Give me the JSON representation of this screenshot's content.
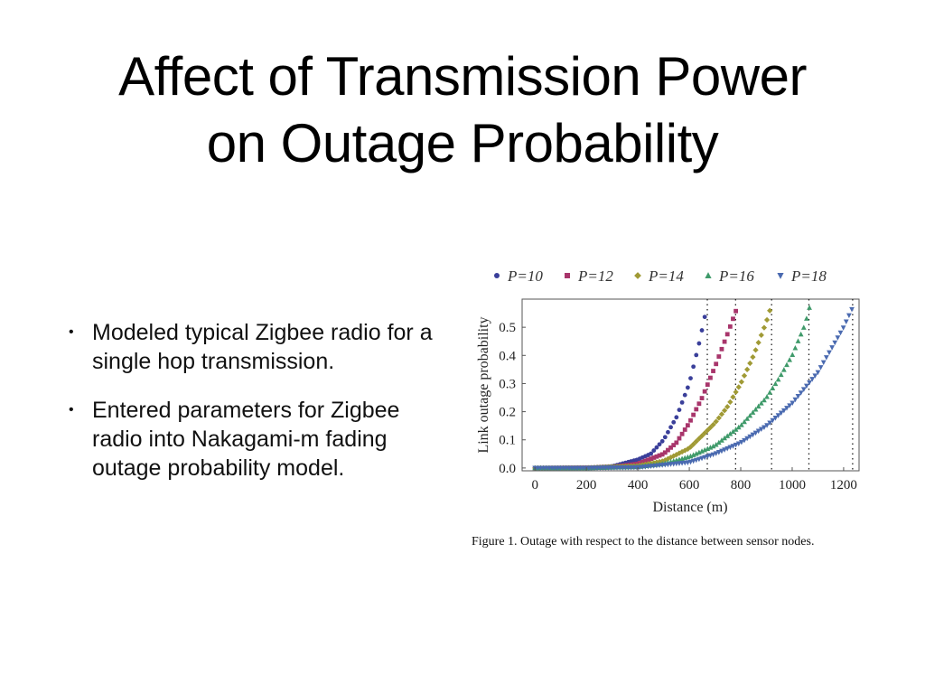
{
  "slide": {
    "title_line1": "Affect of Transmission Power",
    "title_line2": "on Outage Probability",
    "bullets": [
      "Modeled typical Zigbee radio for a single hop transmission.",
      "Entered parameters for Zigbee radio into Nakagami-m fading outage probability model."
    ],
    "caption": "Figure 1.  Outage with respect to the distance between sensor nodes."
  },
  "chart_data": {
    "type": "scatter",
    "title": "",
    "xlabel": "Distance (m)",
    "ylabel": "Link outage probability",
    "xlim": [
      -50,
      1260
    ],
    "ylim": [
      -0.01,
      0.6
    ],
    "xticks": [
      "0",
      "200",
      "400",
      "600",
      "800",
      "1000",
      "1200"
    ],
    "yticks": [
      "0.0",
      "0.1",
      "0.2",
      "0.3",
      "0.4",
      "0.5"
    ],
    "legend_position": "top",
    "series": [
      {
        "name": "P=10",
        "label": "P=10",
        "color": "#3a3f9a",
        "marker": "circle",
        "x_end": 670,
        "cutoff": 670,
        "points": [
          [
            0,
            0
          ],
          [
            100,
            0
          ],
          [
            200,
            0.001
          ],
          [
            300,
            0.006
          ],
          [
            400,
            0.03
          ],
          [
            450,
            0.05
          ],
          [
            500,
            0.1
          ],
          [
            550,
            0.18
          ],
          [
            600,
            0.3
          ],
          [
            640,
            0.45
          ],
          [
            670,
            0.58
          ]
        ]
      },
      {
        "name": "P=12",
        "label": "P=12",
        "color": "#a8356b",
        "marker": "square",
        "x_end": 790,
        "cutoff": 780,
        "points": [
          [
            0,
            0
          ],
          [
            200,
            0.001
          ],
          [
            300,
            0.003
          ],
          [
            400,
            0.015
          ],
          [
            500,
            0.05
          ],
          [
            550,
            0.09
          ],
          [
            600,
            0.16
          ],
          [
            650,
            0.25
          ],
          [
            700,
            0.36
          ],
          [
            750,
            0.48
          ],
          [
            790,
            0.58
          ]
        ]
      },
      {
        "name": "P=14",
        "label": "P=14",
        "color": "#a09a35",
        "marker": "diamond",
        "x_end": 920,
        "cutoff": 920,
        "points": [
          [
            0,
            0
          ],
          [
            200,
            0.0005
          ],
          [
            400,
            0.008
          ],
          [
            500,
            0.025
          ],
          [
            600,
            0.07
          ],
          [
            700,
            0.16
          ],
          [
            750,
            0.22
          ],
          [
            800,
            0.3
          ],
          [
            850,
            0.4
          ],
          [
            900,
            0.52
          ],
          [
            920,
            0.58
          ]
        ]
      },
      {
        "name": "P=16",
        "label": "P=16",
        "color": "#3f9a6a",
        "marker": "triangle",
        "x_end": 1070,
        "cutoff": 1065,
        "points": [
          [
            0,
            0
          ],
          [
            200,
            0
          ],
          [
            400,
            0.004
          ],
          [
            500,
            0.015
          ],
          [
            600,
            0.04
          ],
          [
            700,
            0.08
          ],
          [
            800,
            0.15
          ],
          [
            900,
            0.25
          ],
          [
            950,
            0.32
          ],
          [
            1000,
            0.4
          ],
          [
            1050,
            0.51
          ],
          [
            1070,
            0.58
          ]
        ]
      },
      {
        "name": "P=18",
        "label": "P=18",
        "color": "#4a6ab0",
        "marker": "tri-down",
        "x_end": 1240,
        "cutoff": 1235,
        "points": [
          [
            0,
            0
          ],
          [
            200,
            0
          ],
          [
            400,
            0.002
          ],
          [
            600,
            0.02
          ],
          [
            700,
            0.05
          ],
          [
            800,
            0.09
          ],
          [
            900,
            0.15
          ],
          [
            1000,
            0.23
          ],
          [
            1100,
            0.34
          ],
          [
            1200,
            0.5
          ],
          [
            1240,
            0.58
          ]
        ]
      }
    ]
  }
}
